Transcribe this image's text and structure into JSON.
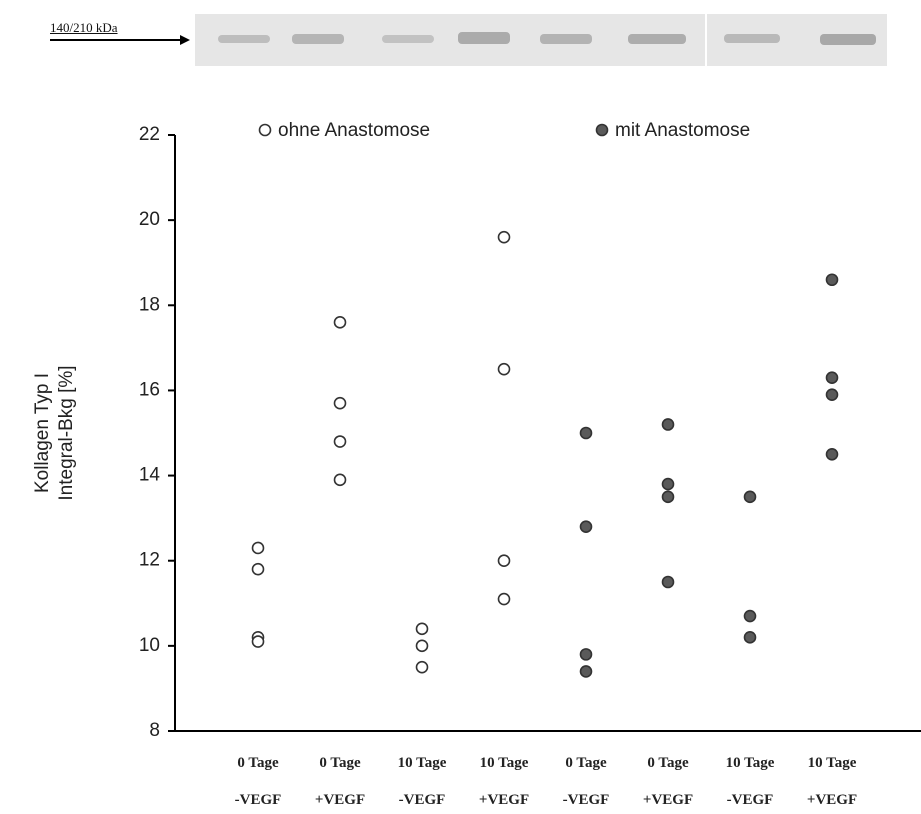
{
  "blot_label": "140/210 kDa",
  "chart_data": {
    "type": "dotplot",
    "ylabel": "Kollagen Typ I\nIntegral-Bkg [%]",
    "categories": [
      "0 Tage\n-VEGF",
      "0 Tage\n+VEGF",
      "10 Tage\n-VEGF",
      "10 Tage\n+VEGF",
      "0 Tage\n-VEGF",
      "0 Tage\n+VEGF",
      "10 Tage\n-VEGF",
      "10 Tage\n+VEGF"
    ],
    "series": [
      {
        "name": "ohne Anastomose",
        "color": "#ffffff",
        "values": [
          [
            12.3,
            11.8,
            10.2,
            10.1
          ],
          [
            17.6,
            15.7,
            14.8,
            13.9
          ],
          [
            10.4,
            10.0,
            9.5
          ],
          [
            19.6,
            16.5,
            12.0,
            11.1
          ],
          [],
          [],
          [],
          []
        ]
      },
      {
        "name": "mit Anastomose",
        "color": "#5a5a5a",
        "values": [
          [],
          [],
          [],
          [],
          [
            15.0,
            12.8,
            9.8,
            9.4
          ],
          [
            15.2,
            13.8,
            13.5,
            11.5
          ],
          [
            13.5,
            10.7,
            10.2
          ],
          [
            18.6,
            16.3,
            15.9,
            14.5
          ]
        ]
      }
    ],
    "ylim": [
      8,
      22
    ],
    "yticks": [
      8,
      10,
      12,
      14,
      16,
      18,
      20,
      22
    ]
  }
}
